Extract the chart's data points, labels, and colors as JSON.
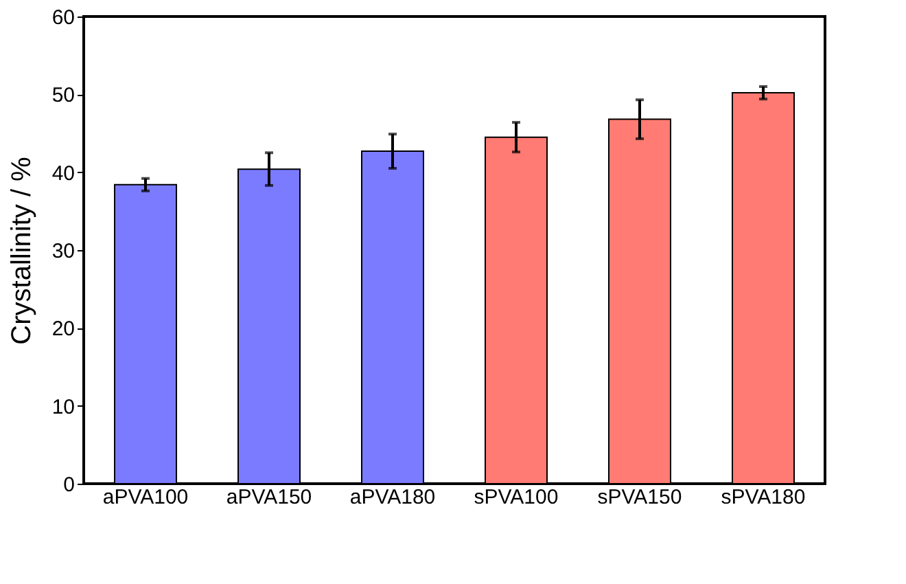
{
  "chart_data": {
    "type": "bar",
    "ylabel": "Crystallinity / %",
    "categories": [
      "aPVA100",
      "aPVA150",
      "aPVA180",
      "sPVA100",
      "sPVA150",
      "sPVA180"
    ],
    "values": [
      38.4,
      40.4,
      42.7,
      44.5,
      46.8,
      50.2
    ],
    "errors": [
      0.8,
      2.1,
      2.2,
      1.9,
      2.5,
      0.8
    ],
    "colors": [
      "#7b7bff",
      "#7b7bff",
      "#7b7bff",
      "#ff7b73",
      "#ff7b73",
      "#ff7b73"
    ],
    "ylim": [
      0,
      60
    ],
    "yticks": [
      0,
      10,
      20,
      30,
      40,
      50,
      60
    ],
    "grid": false
  }
}
